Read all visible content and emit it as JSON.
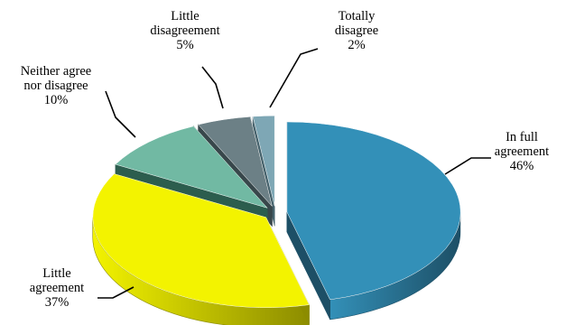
{
  "chart_data": {
    "type": "pie",
    "title": "",
    "slices": [
      {
        "name": "In full agreement",
        "label_lines": [
          "In full",
          "agreement"
        ],
        "value_label": "46%",
        "value": 46,
        "color": "#3390B8",
        "side_color": "#1D4F66"
      },
      {
        "name": "Little agreement",
        "label_lines": [
          "Little",
          "agreement"
        ],
        "value_label": "37%",
        "value": 37,
        "color": "#F3F300",
        "side_color": "#8C8C00"
      },
      {
        "name": "Neither agree nor disagree",
        "label_lines": [
          "Neither agree",
          "nor disagree"
        ],
        "value_label": "10%",
        "value": 10,
        "color": "#71B9A3",
        "side_color": "#2C5D4E"
      },
      {
        "name": "Little disagreement",
        "label_lines": [
          "Little",
          "disagreement"
        ],
        "value_label": "5%",
        "value": 5,
        "color": "#6C8086",
        "side_color": "#38474B"
      },
      {
        "name": "Totally disagree",
        "label_lines": [
          "Totally",
          "disagree"
        ],
        "value_label": "2%",
        "value": 2,
        "color": "#7EA7B5",
        "side_color": "#45626C"
      }
    ],
    "style": {
      "three_d": true,
      "exploded": true,
      "legend": "none",
      "labels": "outside with leader lines"
    }
  }
}
